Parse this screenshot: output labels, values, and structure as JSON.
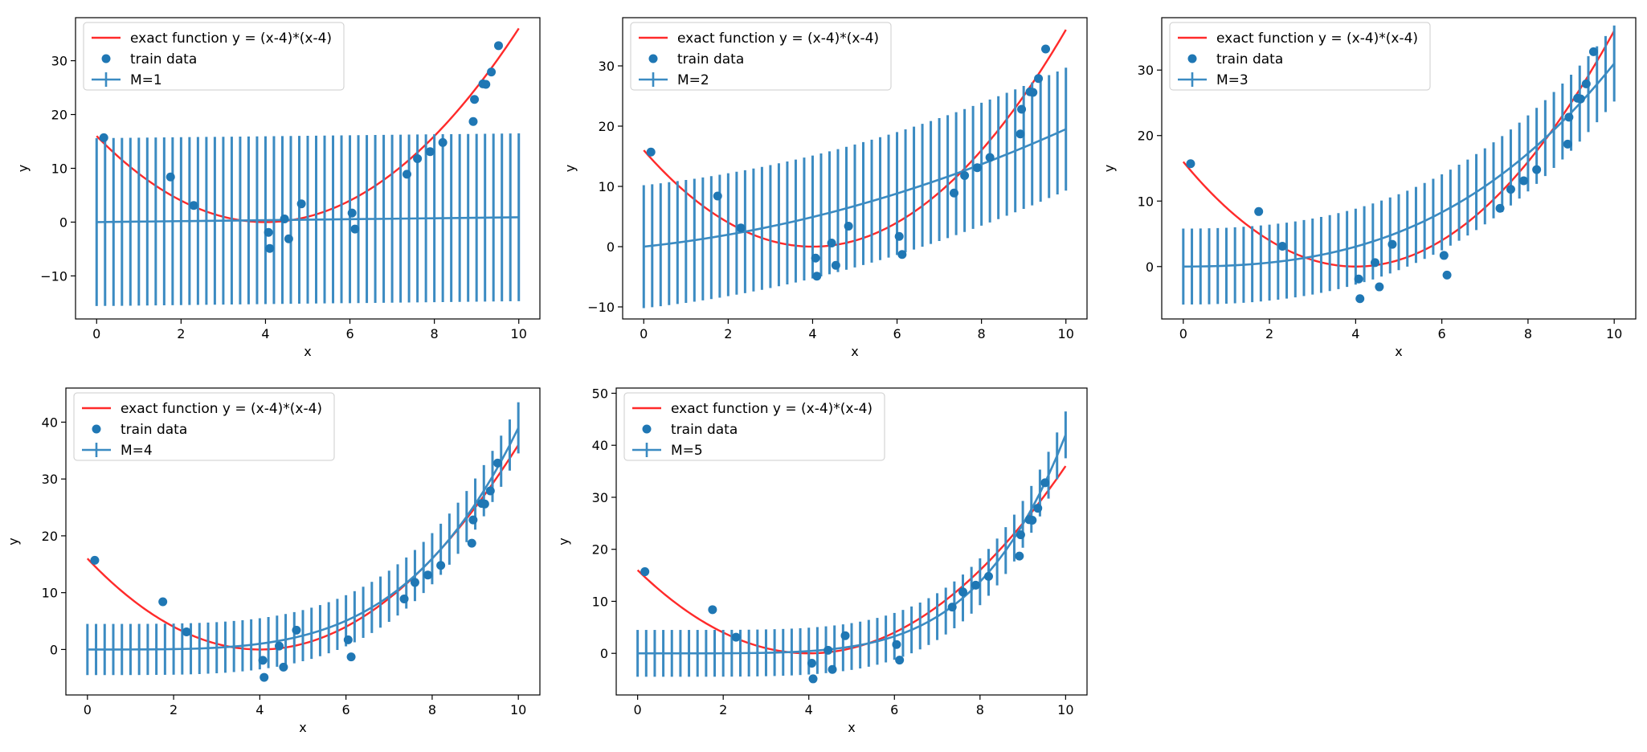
{
  "figure": {
    "legend_labels": {
      "exact": "exact function y = (x-4)*(x-4)",
      "train": "train data"
    },
    "colors": {
      "exact": "#ff2a2a",
      "fit": "#3b8bc2",
      "train": "#1f77b4"
    }
  },
  "chart_data": [
    {
      "type": "line",
      "panel": "M=1",
      "xlabel": "x",
      "ylabel": "y",
      "xlim": [
        -0.5,
        10.5
      ],
      "ylim": [
        -18,
        38
      ],
      "xticks": [
        0,
        2,
        4,
        6,
        8,
        10
      ],
      "yticks": [
        -10,
        0,
        10,
        20,
        30
      ],
      "legend": {
        "placement": "top-left",
        "entries": [
          "exact function y = (x-4)*(x-4)",
          "train data",
          "M=1"
        ]
      },
      "series": [
        {
          "name": "exact function y = (x-4)*(x-4)",
          "kind": "curve",
          "coef": [
            16,
            -8,
            1
          ]
        },
        {
          "name": "M=1",
          "kind": "errorbar",
          "coef": [
            0,
            0.09
          ],
          "error": 15.6
        },
        {
          "name": "train data",
          "kind": "scatter",
          "x": [
            0.17,
            1.75,
            2.3,
            4.07,
            4.1,
            4.45,
            4.55,
            4.85,
            6.05,
            6.12,
            7.35,
            7.6,
            7.9,
            8.2,
            8.92,
            8.95,
            9.15,
            9.22,
            9.35,
            9.52
          ],
          "y": [
            15.7,
            8.4,
            3.1,
            -1.9,
            -4.9,
            0.6,
            -3.1,
            3.4,
            1.7,
            -1.3,
            8.9,
            11.8,
            13.1,
            14.8,
            18.7,
            22.8,
            25.7,
            25.6,
            27.9,
            32.8
          ]
        }
      ]
    },
    {
      "type": "line",
      "panel": "M=2",
      "xlabel": "x",
      "ylabel": "y",
      "xlim": [
        -0.5,
        10.5
      ],
      "ylim": [
        -12,
        38
      ],
      "xticks": [
        0,
        2,
        4,
        6,
        8,
        10
      ],
      "yticks": [
        -10,
        0,
        10,
        20,
        30
      ],
      "legend": {
        "placement": "top-left",
        "entries": [
          "exact function y = (x-4)*(x-4)",
          "train data",
          "M=2"
        ]
      },
      "series": [
        {
          "name": "exact function y = (x-4)*(x-4)",
          "kind": "curve",
          "coef": [
            16,
            -8,
            1
          ]
        },
        {
          "name": "M=2",
          "kind": "errorbar",
          "coef": [
            0,
            0.75,
            0.12
          ],
          "error": 10.2
        },
        {
          "name": "train data",
          "kind": "scatter",
          "x": [
            0.17,
            1.75,
            2.3,
            4.07,
            4.1,
            4.45,
            4.55,
            4.85,
            6.05,
            6.12,
            7.35,
            7.6,
            7.9,
            8.2,
            8.92,
            8.95,
            9.15,
            9.22,
            9.35,
            9.52
          ],
          "y": [
            15.7,
            8.4,
            3.1,
            -1.9,
            -4.9,
            0.6,
            -3.1,
            3.4,
            1.7,
            -1.3,
            8.9,
            11.8,
            13.1,
            14.8,
            18.7,
            22.8,
            25.7,
            25.6,
            27.9,
            32.8
          ]
        }
      ]
    },
    {
      "type": "line",
      "panel": "M=3",
      "xlabel": "x",
      "ylabel": "y",
      "xlim": [
        -0.5,
        10.5
      ],
      "ylim": [
        -8,
        38
      ],
      "xticks": [
        0,
        2,
        4,
        6,
        8,
        10
      ],
      "yticks": [
        0,
        10,
        20,
        30
      ],
      "legend": {
        "placement": "top-left",
        "entries": [
          "exact function y = (x-4)*(x-4)",
          "train data",
          "M=3"
        ]
      },
      "series": [
        {
          "name": "exact function y = (x-4)*(x-4)",
          "kind": "curve",
          "coef": [
            16,
            -8,
            1
          ]
        },
        {
          "name": "M=3",
          "kind": "errorbar",
          "coef": [
            0,
            0,
            0.11,
            0.02
          ],
          "error": 5.8
        },
        {
          "name": "train data",
          "kind": "scatter",
          "x": [
            0.17,
            1.75,
            2.3,
            4.07,
            4.1,
            4.45,
            4.55,
            4.85,
            6.05,
            6.12,
            7.35,
            7.6,
            7.9,
            8.2,
            8.92,
            8.95,
            9.15,
            9.22,
            9.35,
            9.52
          ],
          "y": [
            15.7,
            8.4,
            3.1,
            -1.9,
            -4.9,
            0.6,
            -3.1,
            3.4,
            1.7,
            -1.3,
            8.9,
            11.8,
            13.1,
            14.8,
            18.7,
            22.8,
            25.7,
            25.6,
            27.9,
            32.8
          ]
        }
      ]
    },
    {
      "type": "line",
      "panel": "M=4",
      "xlabel": "x",
      "ylabel": "y",
      "xlim": [
        -0.5,
        10.5
      ],
      "ylim": [
        -8,
        46
      ],
      "xticks": [
        0,
        2,
        4,
        6,
        8,
        10
      ],
      "yticks": [
        0,
        10,
        20,
        30,
        40
      ],
      "legend": {
        "placement": "top-left",
        "entries": [
          "exact function y = (x-4)*(x-4)",
          "train data",
          "M=4"
        ]
      },
      "series": [
        {
          "name": "exact function y = (x-4)*(x-4)",
          "kind": "curve",
          "coef": [
            16,
            -8,
            1
          ]
        },
        {
          "name": "M=4",
          "kind": "errorbar",
          "coef": [
            0,
            0,
            0,
            0,
            0.0039
          ],
          "error": 4.5
        },
        {
          "name": "train data",
          "kind": "scatter",
          "x": [
            0.17,
            1.75,
            2.3,
            4.07,
            4.1,
            4.45,
            4.55,
            4.85,
            6.05,
            6.12,
            7.35,
            7.6,
            7.9,
            8.2,
            8.92,
            8.95,
            9.15,
            9.22,
            9.35,
            9.52
          ],
          "y": [
            15.7,
            8.4,
            3.1,
            -1.9,
            -4.9,
            0.6,
            -3.1,
            3.4,
            1.7,
            -1.3,
            8.9,
            11.8,
            13.1,
            14.8,
            18.7,
            22.8,
            25.7,
            25.6,
            27.9,
            32.8
          ]
        }
      ]
    },
    {
      "type": "line",
      "panel": "M=5",
      "xlabel": "x",
      "ylabel": "y",
      "xlim": [
        -0.5,
        10.5
      ],
      "ylim": [
        -8,
        51
      ],
      "xticks": [
        0,
        2,
        4,
        6,
        8,
        10
      ],
      "yticks": [
        0,
        10,
        20,
        30,
        40,
        50
      ],
      "legend": {
        "placement": "top-left",
        "entries": [
          "exact function y = (x-4)*(x-4)",
          "train data",
          "M=5"
        ]
      },
      "series": [
        {
          "name": "exact function y = (x-4)*(x-4)",
          "kind": "curve",
          "coef": [
            16,
            -8,
            1
          ]
        },
        {
          "name": "M=5",
          "kind": "errorbar",
          "coef": [
            0,
            0,
            0,
            0,
            0,
            0.00042
          ],
          "error": 4.5
        },
        {
          "name": "train data",
          "kind": "scatter",
          "x": [
            0.17,
            1.75,
            2.3,
            4.07,
            4.1,
            4.45,
            4.55,
            4.85,
            6.05,
            6.12,
            7.35,
            7.6,
            7.9,
            8.2,
            8.92,
            8.95,
            9.15,
            9.22,
            9.35,
            9.52
          ],
          "y": [
            15.7,
            8.4,
            3.1,
            -1.9,
            -4.9,
            0.6,
            -3.1,
            3.4,
            1.7,
            -1.3,
            8.9,
            11.8,
            13.1,
            14.8,
            18.7,
            22.8,
            25.7,
            25.6,
            27.9,
            32.8
          ]
        }
      ]
    }
  ]
}
